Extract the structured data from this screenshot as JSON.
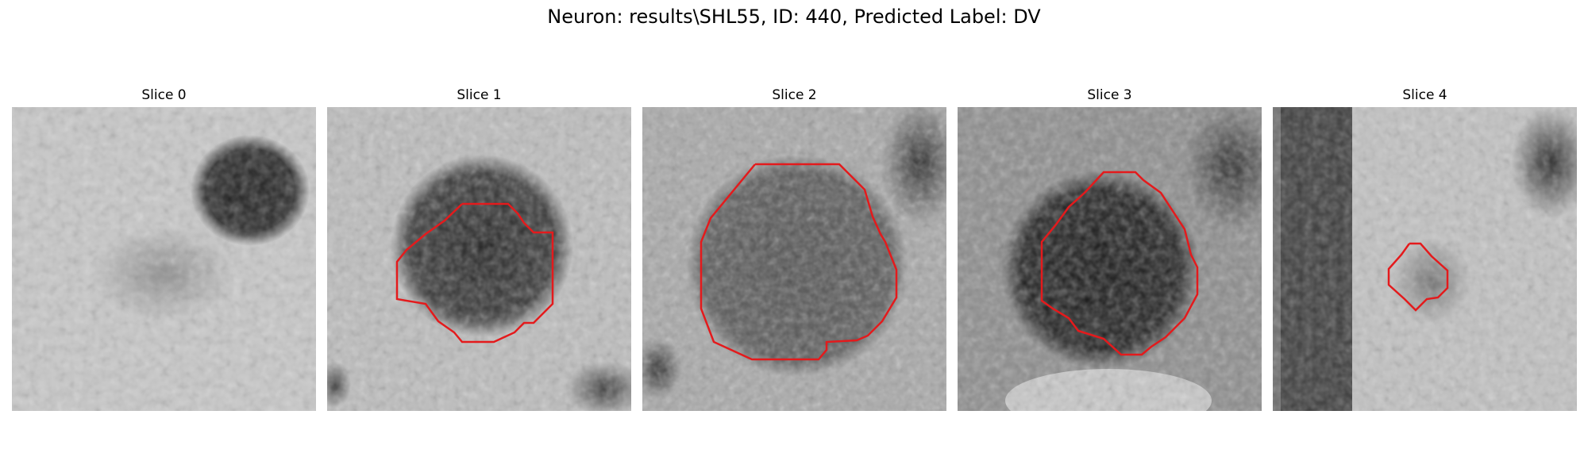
{
  "figure": {
    "title": "Neuron: results\\SHL55, ID: 440, Predicted Label: DV"
  },
  "panels": [
    {
      "title": "Slice 0",
      "image": "grayscale-microscopy-patch",
      "has_contour": false
    },
    {
      "title": "Slice 1",
      "image": "grayscale-microscopy-patch",
      "has_contour": true
    },
    {
      "title": "Slice 2",
      "image": "grayscale-microscopy-patch",
      "has_contour": true
    },
    {
      "title": "Slice 3",
      "image": "grayscale-microscopy-patch",
      "has_contour": true
    },
    {
      "title": "Slice 4",
      "image": "grayscale-microscopy-patch",
      "has_contour": true
    }
  ],
  "colors": {
    "contour": "#e41a1c",
    "background": "#ffffff"
  }
}
